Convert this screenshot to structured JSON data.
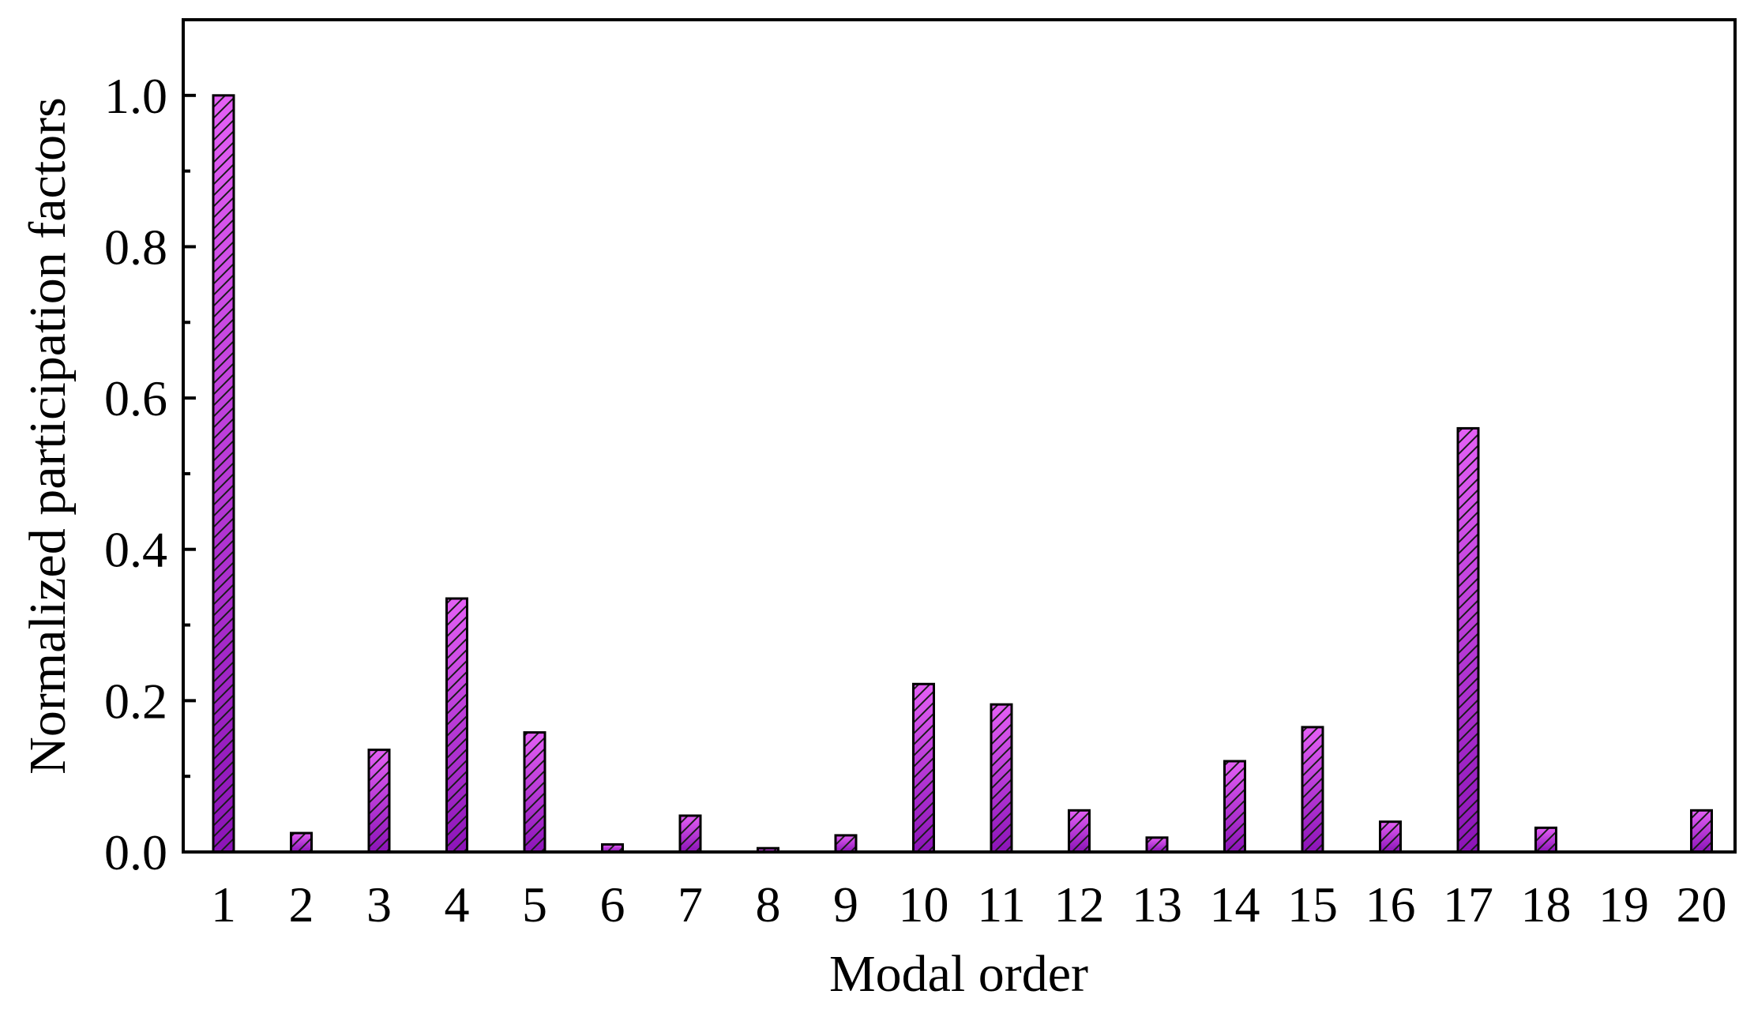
{
  "chart_data": {
    "type": "bar",
    "title": "",
    "xlabel": "Modal order",
    "ylabel": "Normalized participation factors",
    "categories": [
      "1",
      "2",
      "3",
      "4",
      "5",
      "6",
      "7",
      "8",
      "9",
      "10",
      "11",
      "12",
      "13",
      "14",
      "15",
      "16",
      "17",
      "18",
      "19",
      "20"
    ],
    "values": [
      1.0,
      0.025,
      0.135,
      0.335,
      0.158,
      0.01,
      0.048,
      0.005,
      0.022,
      0.222,
      0.195,
      0.055,
      0.019,
      0.12,
      0.165,
      0.04,
      0.56,
      0.032,
      0.0,
      0.055
    ],
    "ylim": [
      0,
      1.1
    ],
    "yticks": [
      "0.0",
      "0.2",
      "0.4",
      "0.6",
      "0.8",
      "1.0"
    ],
    "ytick_values": [
      0,
      0.2,
      0.4,
      0.6,
      0.8,
      1.0
    ],
    "grid": false,
    "legend": "none",
    "colors": {
      "bar_top": "#e460f5",
      "bar_bottom": "#8c14b8",
      "hatch": "#1a1a1a",
      "axis": "#000000"
    }
  }
}
